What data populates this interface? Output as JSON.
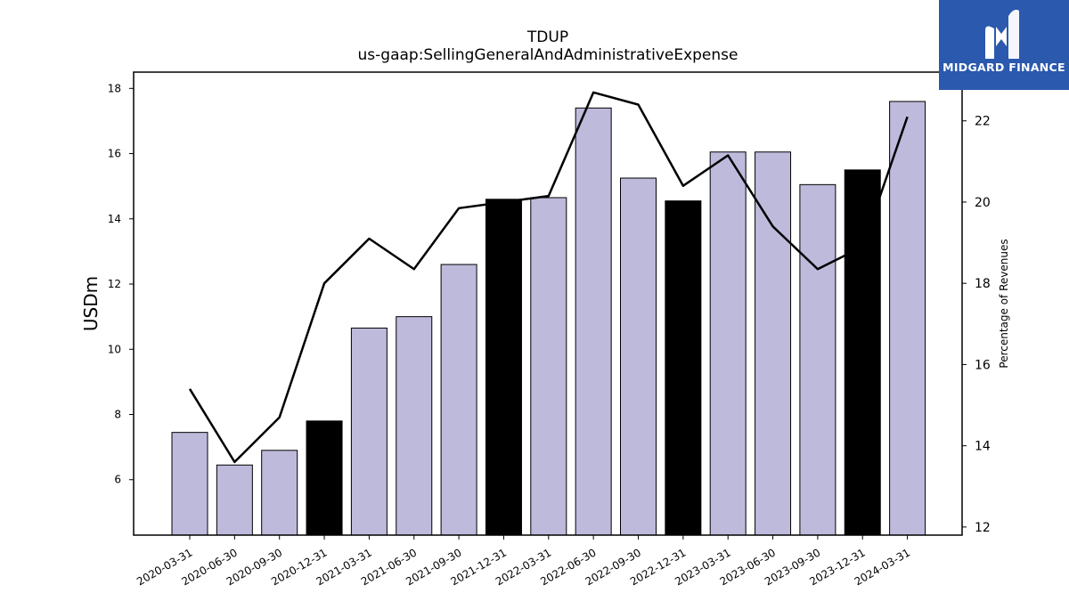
{
  "chart_data": {
    "type": "bar",
    "title": "TDUP",
    "subtitle": "us-gaap:SellingGeneralAndAdministrativeExpense",
    "ylabel": "USDm",
    "y2label": "Percentage of Revenues",
    "ylim": [
      4.3,
      18.5
    ],
    "y2lim": [
      11.8,
      23.2
    ],
    "yticks": [
      6,
      8,
      10,
      12,
      14,
      16,
      18
    ],
    "y2ticks": [
      12,
      14,
      16,
      18,
      20,
      22
    ],
    "categories": [
      "2020-03-31",
      "2020-06-30",
      "2020-09-30",
      "2020-12-31",
      "2021-03-31",
      "2021-06-30",
      "2021-09-30",
      "2021-12-31",
      "2022-03-31",
      "2022-06-30",
      "2022-09-30",
      "2022-12-31",
      "2023-03-31",
      "2023-06-30",
      "2023-09-30",
      "2023-12-31",
      "2024-03-31"
    ],
    "series": [
      {
        "type": "bar",
        "values": [
          7.45,
          6.45,
          6.9,
          7.8,
          10.65,
          11.0,
          12.6,
          14.6,
          14.65,
          17.4,
          15.25,
          14.55,
          16.05,
          16.05,
          15.05,
          15.5,
          17.6
        ],
        "highlight": [
          false,
          false,
          false,
          true,
          false,
          false,
          false,
          true,
          false,
          false,
          false,
          true,
          false,
          false,
          false,
          true,
          false
        ],
        "color": "#bdbadb",
        "highlight_color": "#000000"
      },
      {
        "type": "line",
        "axis": "right",
        "values": [
          15.4,
          13.6,
          14.7,
          18.0,
          19.1,
          18.35,
          19.85,
          20.0,
          20.15,
          22.7,
          22.4,
          20.4,
          21.15,
          19.4,
          18.35,
          18.9,
          22.1
        ],
        "color": "#000000"
      }
    ]
  },
  "logo": {
    "text": "MIDGARD FINANCE",
    "color": "#2a59ad"
  }
}
